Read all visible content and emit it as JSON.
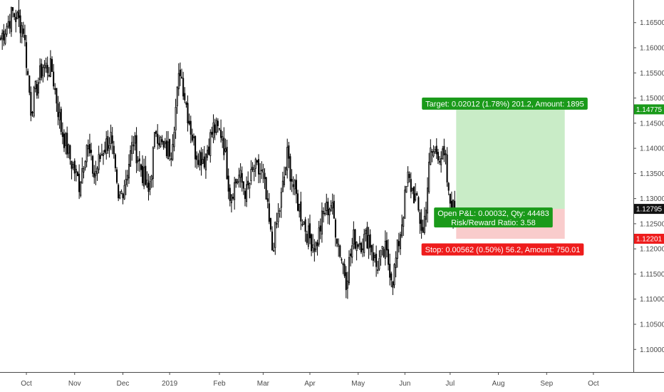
{
  "chart_data": {
    "type": "candlestick",
    "instrument_note": "",
    "y_axis": {
      "ticks": [
        "1.16500",
        "1.16000",
        "1.15500",
        "1.15000",
        "1.14500",
        "1.14000",
        "1.13500",
        "1.13000",
        "1.12500",
        "1.12000",
        "1.11500",
        "1.11000",
        "1.10500",
        "1.10000"
      ],
      "tick_values": [
        1.165,
        1.16,
        1.155,
        1.15,
        1.145,
        1.14,
        1.135,
        1.13,
        1.125,
        1.12,
        1.115,
        1.11,
        1.105,
        1.1
      ],
      "ylim": [
        1.0955,
        1.1695
      ]
    },
    "x_axis": {
      "ticks": [
        "Oct",
        "Nov",
        "Dec",
        "2019",
        "Feb",
        "Mar",
        "Apr",
        "May",
        "Jun",
        "Jul",
        "Aug",
        "Sep",
        "Oct"
      ],
      "tick_index": [
        17,
        49,
        81,
        112,
        145,
        174,
        205,
        237,
        268,
        298,
        330,
        362,
        393
      ],
      "total_slots": 420
    },
    "colors": {
      "candle": "#000000",
      "target_zone": "#c9ecc7",
      "stop_zone": "#f9cccc",
      "green_label": "#1a9a1a",
      "red_label": "#ee1c1c",
      "current_price": "#111111"
    },
    "position": {
      "type": "long",
      "entry": 1.12795,
      "target": 1.14775,
      "stop": 1.12201,
      "start_index": 302,
      "end_index": 374,
      "target_label": "Target: 0.02012 (1.78%) 201.2, Amount: 1895",
      "stop_label": "Stop: 0.00562 (0.50%) 56.2, Amount: 750.01",
      "pnl_label_1": "Open P&L: 0.00032, Qty: 44483",
      "pnl_label_2": "Risk/Reward Ratio: 3.58"
    },
    "price_tags": {
      "target": "1.14775",
      "current": "1.12795",
      "stop": "1.12201"
    },
    "candles_anchor_close": [
      [
        0,
        1.162
      ],
      [
        8,
        1.167
      ],
      [
        15,
        1.164
      ],
      [
        20,
        1.148
      ],
      [
        28,
        1.1565
      ],
      [
        34,
        1.1555
      ],
      [
        40,
        1.144
      ],
      [
        46,
        1.138
      ],
      [
        52,
        1.133
      ],
      [
        57,
        1.141
      ],
      [
        62,
        1.1345
      ],
      [
        68,
        1.14
      ],
      [
        73,
        1.142
      ],
      [
        78,
        1.129
      ],
      [
        83,
        1.1345
      ],
      [
        88,
        1.1415
      ],
      [
        93,
        1.136
      ],
      [
        98,
        1.131
      ],
      [
        103,
        1.144
      ],
      [
        108,
        1.1395
      ],
      [
        113,
        1.14
      ],
      [
        119,
        1.156
      ],
      [
        124,
        1.147
      ],
      [
        129,
        1.1395
      ],
      [
        135,
        1.138
      ],
      [
        141,
        1.144
      ],
      [
        147,
        1.143
      ],
      [
        152,
        1.131
      ],
      [
        158,
        1.1345
      ],
      [
        163,
        1.131
      ],
      [
        168,
        1.136
      ],
      [
        174,
        1.1345
      ],
      [
        180,
        1.12
      ],
      [
        185,
        1.128
      ],
      [
        190,
        1.1385
      ],
      [
        194,
        1.1325
      ],
      [
        199,
        1.127
      ],
      [
        204,
        1.1225
      ],
      [
        209,
        1.1205
      ],
      [
        214,
        1.127
      ],
      [
        219,
        1.129
      ],
      [
        224,
        1.121
      ],
      [
        229,
        1.114
      ],
      [
        234,
        1.122
      ],
      [
        239,
        1.1215
      ],
      [
        244,
        1.1225
      ],
      [
        249,
        1.1165
      ],
      [
        255,
        1.1195
      ],
      [
        260,
        1.114
      ],
      [
        265,
        1.1235
      ],
      [
        270,
        1.134
      ],
      [
        275,
        1.13
      ],
      [
        280,
        1.123
      ],
      [
        285,
        1.139
      ],
      [
        290,
        1.1395
      ],
      [
        295,
        1.137
      ],
      [
        297,
        1.13
      ],
      [
        300,
        1.128
      ],
      [
        302,
        1.12795
      ]
    ]
  }
}
